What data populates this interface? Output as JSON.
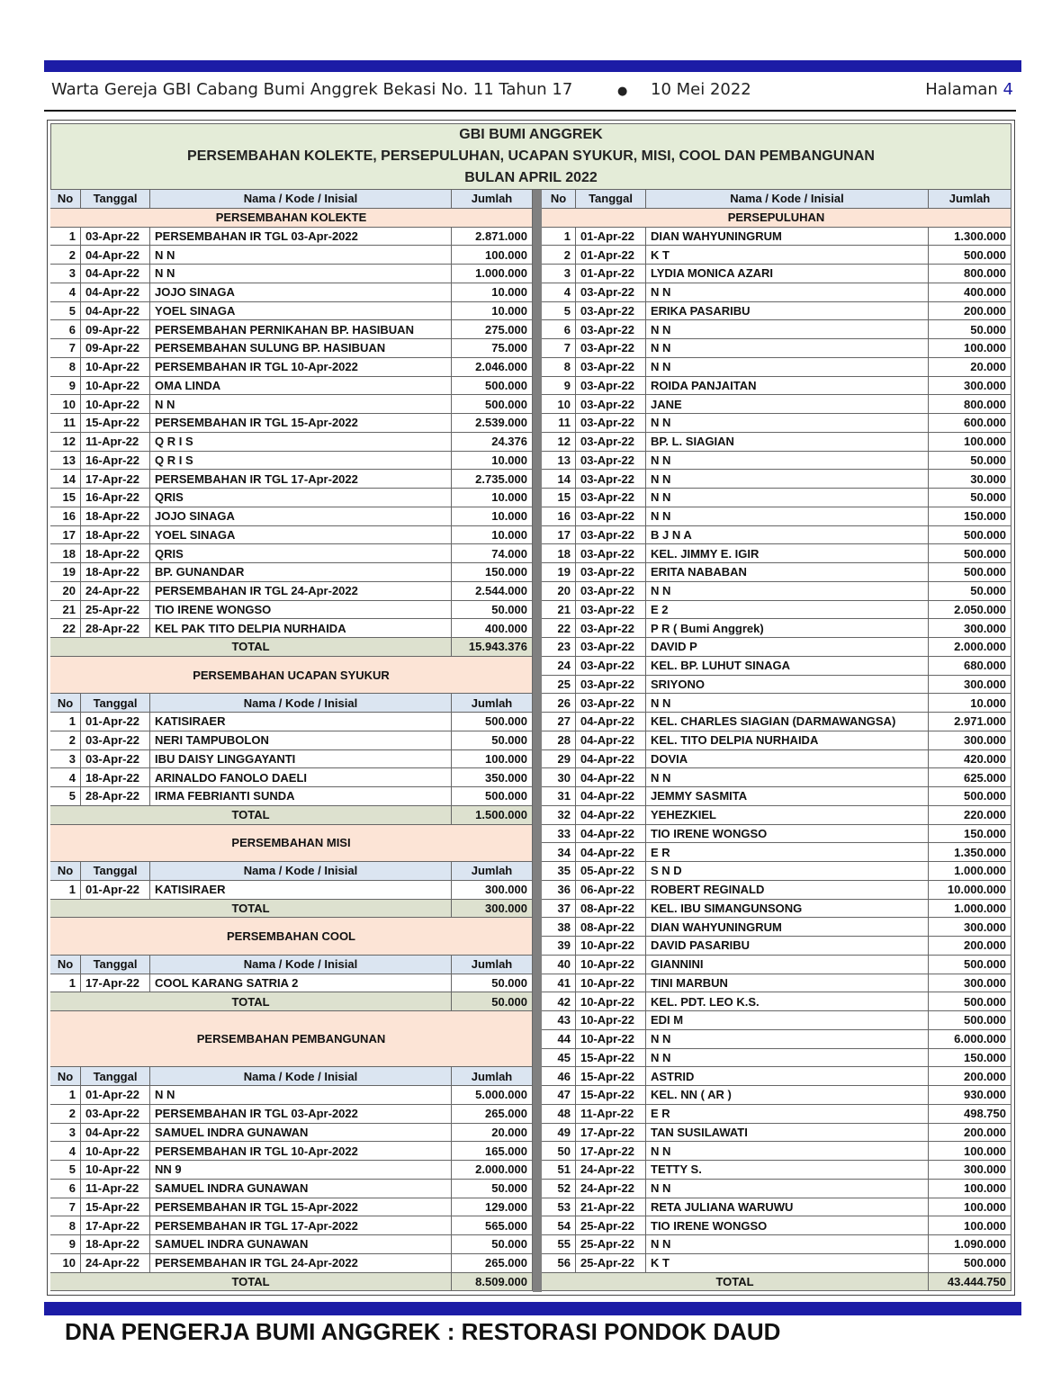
{
  "header": {
    "publication": "Warta Gereja GBI Cabang Bumi Anggrek Bekasi No. 11 Tahun 17",
    "bullet": "●",
    "date": "10 Mei 2022",
    "page_label": "Halaman",
    "page_number": "4"
  },
  "table": {
    "title_lines": [
      "GBI BUMI ANGGREK",
      "PERSEMBAHAN KOLEKTE, PERSEPULUHAN, UCAPAN SYUKUR, MISI, COOL DAN PEMBANGUNAN",
      "BULAN APRIL 2022"
    ],
    "columns": [
      "No",
      "Tanggal",
      "Nama / Kode / Inisial",
      "Jumlah"
    ],
    "left": [
      {
        "title": "PERSEMBAHAN KOLEKTE",
        "rows": [
          [
            1,
            "03-Apr-22",
            "PERSEMBAHAN IR TGL 03-Apr-2022",
            "2.871.000"
          ],
          [
            2,
            "04-Apr-22",
            "N N",
            "100.000"
          ],
          [
            3,
            "04-Apr-22",
            "N N",
            "1.000.000"
          ],
          [
            4,
            "04-Apr-22",
            "JOJO SINAGA",
            "10.000"
          ],
          [
            5,
            "04-Apr-22",
            "YOEL SINAGA",
            "10.000"
          ],
          [
            6,
            "09-Apr-22",
            "PERSEMBAHAN PERNIKAHAN BP. HASIBUAN",
            "275.000"
          ],
          [
            7,
            "09-Apr-22",
            "PERSEMBAHAN SULUNG BP. HASIBUAN",
            "75.000"
          ],
          [
            8,
            "10-Apr-22",
            "PERSEMBAHAN IR TGL 10-Apr-2022",
            "2.046.000"
          ],
          [
            9,
            "10-Apr-22",
            "OMA LINDA",
            "500.000"
          ],
          [
            10,
            "10-Apr-22",
            "N N",
            "500.000"
          ],
          [
            11,
            "15-Apr-22",
            "PERSEMBAHAN IR TGL 15-Apr-2022",
            "2.539.000"
          ],
          [
            12,
            "11-Apr-22",
            "Q R I S",
            "24.376"
          ],
          [
            13,
            "16-Apr-22",
            "Q R I S",
            "10.000"
          ],
          [
            14,
            "17-Apr-22",
            "PERSEMBAHAN IR TGL 17-Apr-2022",
            "2.735.000"
          ],
          [
            15,
            "16-Apr-22",
            "QRIS",
            "10.000"
          ],
          [
            16,
            "18-Apr-22",
            "JOJO SINAGA",
            "10.000"
          ],
          [
            17,
            "18-Apr-22",
            "YOEL SINAGA",
            "10.000"
          ],
          [
            18,
            "18-Apr-22",
            "QRIS",
            "74.000"
          ],
          [
            19,
            "18-Apr-22",
            "BP. GUNANDAR",
            "150.000"
          ],
          [
            20,
            "24-Apr-22",
            "PERSEMBAHAN IR TGL 24-Apr-2022",
            "2.544.000"
          ],
          [
            21,
            "25-Apr-22",
            "TIO IRENE WONGSO",
            "50.000"
          ],
          [
            22,
            "28-Apr-22",
            "KEL PAK TITO DELPIA NURHAIDA",
            "400.000"
          ]
        ],
        "total_label": "TOTAL",
        "total": "15.943.376"
      },
      {
        "title": "PERSEMBAHAN UCAPAN SYUKUR",
        "rows": [
          [
            1,
            "01-Apr-22",
            "KATISIRAER",
            "500.000"
          ],
          [
            2,
            "03-Apr-22",
            "NERI TAMPUBOLON",
            "50.000"
          ],
          [
            3,
            "03-Apr-22",
            "IBU DAISY LINGGAYANTI",
            "100.000"
          ],
          [
            4,
            "18-Apr-22",
            "ARINALDO FANOLO DAELI",
            "350.000"
          ],
          [
            5,
            "28-Apr-22",
            "IRMA FEBRIANTI SUNDA",
            "500.000"
          ]
        ],
        "total_label": "TOTAL",
        "total": "1.500.000"
      },
      {
        "title": "PERSEMBAHAN MISI",
        "rows": [
          [
            1,
            "01-Apr-22",
            "KATISIRAER",
            "300.000"
          ]
        ],
        "total_label": "TOTAL",
        "total": "300.000"
      },
      {
        "title": "PERSEMBAHAN COOL",
        "rows": [
          [
            1,
            "17-Apr-22",
            "COOL KARANG SATRIA 2",
            "50.000"
          ]
        ],
        "total_label": "TOTAL",
        "total": "50.000"
      },
      {
        "title": "PERSEMBAHAN PEMBANGUNAN",
        "rows": [
          [
            1,
            "01-Apr-22",
            "N N",
            "5.000.000"
          ],
          [
            2,
            "03-Apr-22",
            "PERSEMBAHAN IR TGL 03-Apr-2022",
            "265.000"
          ],
          [
            3,
            "04-Apr-22",
            "SAMUEL INDRA GUNAWAN",
            "20.000"
          ],
          [
            4,
            "10-Apr-22",
            "PERSEMBAHAN IR TGL 10-Apr-2022",
            "165.000"
          ],
          [
            5,
            "10-Apr-22",
            "NN 9",
            "2.000.000"
          ],
          [
            6,
            "11-Apr-22",
            "SAMUEL INDRA GUNAWAN",
            "50.000"
          ],
          [
            7,
            "15-Apr-22",
            "PERSEMBAHAN IR TGL 15-Apr-2022",
            "129.000"
          ],
          [
            8,
            "17-Apr-22",
            "PERSEMBAHAN IR TGL 17-Apr-2022",
            "565.000"
          ],
          [
            9,
            "18-Apr-22",
            "SAMUEL INDRA GUNAWAN",
            "50.000"
          ],
          [
            10,
            "24-Apr-22",
            "PERSEMBAHAN IR TGL 24-Apr-2022",
            "265.000"
          ]
        ],
        "total_label": "TOTAL",
        "total": "8.509.000"
      }
    ],
    "right": [
      {
        "title": "PERSEPULUHAN",
        "rows": [
          [
            1,
            "01-Apr-22",
            "DIAN WAHYUNINGRUM",
            "1.300.000"
          ],
          [
            2,
            "01-Apr-22",
            "K T",
            "500.000"
          ],
          [
            3,
            "01-Apr-22",
            "LYDIA MONICA AZARI",
            "800.000"
          ],
          [
            4,
            "03-Apr-22",
            "N N",
            "400.000"
          ],
          [
            5,
            "03-Apr-22",
            "ERIKA PASARIBU",
            "200.000"
          ],
          [
            6,
            "03-Apr-22",
            "N N",
            "50.000"
          ],
          [
            7,
            "03-Apr-22",
            "N N",
            "100.000"
          ],
          [
            8,
            "03-Apr-22",
            "N N",
            "20.000"
          ],
          [
            9,
            "03-Apr-22",
            "ROIDA PANJAITAN",
            "300.000"
          ],
          [
            10,
            "03-Apr-22",
            "JANE",
            "800.000"
          ],
          [
            11,
            "03-Apr-22",
            "N N",
            "600.000"
          ],
          [
            12,
            "03-Apr-22",
            "BP. L. SIAGIAN",
            "100.000"
          ],
          [
            13,
            "03-Apr-22",
            "N N",
            "50.000"
          ],
          [
            14,
            "03-Apr-22",
            "N N",
            "30.000"
          ],
          [
            15,
            "03-Apr-22",
            "N N",
            "50.000"
          ],
          [
            16,
            "03-Apr-22",
            "N N",
            "150.000"
          ],
          [
            17,
            "03-Apr-22",
            "B J N A",
            "500.000"
          ],
          [
            18,
            "03-Apr-22",
            "KEL. JIMMY E. IGIR",
            "500.000"
          ],
          [
            19,
            "03-Apr-22",
            "ERITA NABABAN",
            "500.000"
          ],
          [
            20,
            "03-Apr-22",
            "N N",
            "50.000"
          ],
          [
            21,
            "03-Apr-22",
            "E 2",
            "2.050.000"
          ],
          [
            22,
            "03-Apr-22",
            "P R ( Bumi Anggrek)",
            "300.000"
          ],
          [
            23,
            "03-Apr-22",
            "DAVID P",
            "2.000.000"
          ],
          [
            24,
            "03-Apr-22",
            "KEL. BP. LUHUT SINAGA",
            "680.000"
          ],
          [
            25,
            "03-Apr-22",
            "SRIYONO",
            "300.000"
          ],
          [
            26,
            "03-Apr-22",
            "N N",
            "10.000"
          ],
          [
            27,
            "04-Apr-22",
            "KEL. CHARLES SIAGIAN (DARMAWANGSA)",
            "2.971.000"
          ],
          [
            28,
            "04-Apr-22",
            "KEL. TITO DELPIA NURHAIDA",
            "300.000"
          ],
          [
            29,
            "04-Apr-22",
            "DOVIA",
            "420.000"
          ],
          [
            30,
            "04-Apr-22",
            "N N",
            "625.000"
          ],
          [
            31,
            "04-Apr-22",
            "JEMMY SASMITA",
            "500.000"
          ],
          [
            32,
            "04-Apr-22",
            "YEHEZKIEL",
            "220.000"
          ],
          [
            33,
            "04-Apr-22",
            "TIO IRENE WONGSO",
            "150.000"
          ],
          [
            34,
            "04-Apr-22",
            "E R",
            "1.350.000"
          ],
          [
            35,
            "05-Apr-22",
            "S N D",
            "1.000.000"
          ],
          [
            36,
            "06-Apr-22",
            "ROBERT REGINALD",
            "10.000.000"
          ],
          [
            37,
            "08-Apr-22",
            "KEL. IBU SIMANGUNSONG",
            "1.000.000"
          ],
          [
            38,
            "08-Apr-22",
            "DIAN WAHYUNINGRUM",
            "300.000"
          ],
          [
            39,
            "10-Apr-22",
            "DAVID PASARIBU",
            "200.000"
          ],
          [
            40,
            "10-Apr-22",
            "GIANNINI",
            "500.000"
          ],
          [
            41,
            "10-Apr-22",
            "TINI MARBUN",
            "300.000"
          ],
          [
            42,
            "10-Apr-22",
            "KEL. PDT. LEO K.S.",
            "500.000"
          ],
          [
            43,
            "10-Apr-22",
            "EDI M",
            "500.000"
          ],
          [
            44,
            "10-Apr-22",
            "N N",
            "6.000.000"
          ],
          [
            45,
            "15-Apr-22",
            "N N",
            "150.000"
          ],
          [
            46,
            "15-Apr-22",
            "ASTRID",
            "200.000"
          ],
          [
            47,
            "15-Apr-22",
            "KEL. NN ( AR )",
            "930.000"
          ],
          [
            48,
            "11-Apr-22",
            "E R",
            "498.750"
          ],
          [
            49,
            "17-Apr-22",
            "TAN SUSILAWATI",
            "200.000"
          ],
          [
            50,
            "17-Apr-22",
            "N N",
            "100.000"
          ],
          [
            51,
            "24-Apr-22",
            "TETTY S.",
            "300.000"
          ],
          [
            52,
            "24-Apr-22",
            "N N",
            "100.000"
          ],
          [
            53,
            "21-Apr-22",
            "RETA JULIANA WARUWU",
            "100.000"
          ],
          [
            54,
            "25-Apr-22",
            "TIO IRENE WONGSO",
            "100.000"
          ],
          [
            55,
            "25-Apr-22",
            "N N",
            "1.090.000"
          ],
          [
            56,
            "25-Apr-22",
            "K T",
            "500.000"
          ]
        ],
        "total_label": "TOTAL",
        "total": "43.444.750"
      }
    ]
  },
  "footer": "DNA PENGERJA BUMI ANGGREK : RESTORASI PONDOK DAUD"
}
